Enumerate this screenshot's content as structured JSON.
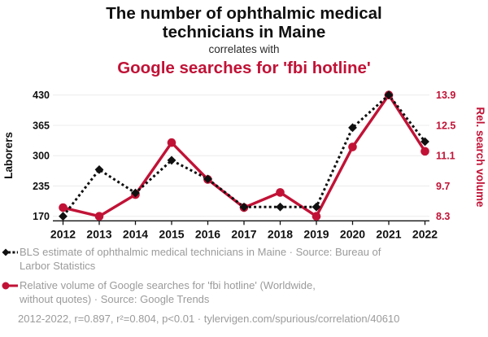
{
  "header": {
    "title_lines": [
      "The number of ophthalmic medical",
      "technicians in Maine"
    ],
    "connector": "correlates with",
    "subtitle": "Google searches for 'fbi hotline'"
  },
  "chart_data": {
    "type": "line",
    "x": [
      2012,
      2013,
      2014,
      2015,
      2016,
      2017,
      2018,
      2019,
      2020,
      2021,
      2022
    ],
    "series": [
      {
        "name": "BLS estimate of ophthalmic medical technicians in Maine",
        "axis": "left",
        "color": "#101010",
        "line_style": "dashed",
        "marker": "diamond",
        "values": [
          170,
          270,
          220,
          290,
          250,
          190,
          190,
          190,
          360,
          430,
          330
        ]
      },
      {
        "name": "Relative volume of Google searches for 'fbi hotline'",
        "axis": "right",
        "color": "#c11236",
        "line_style": "solid",
        "marker": "circle",
        "values": [
          8.7,
          8.3,
          9.3,
          11.7,
          10.0,
          8.7,
          9.4,
          8.3,
          11.5,
          13.9,
          11.3
        ]
      }
    ],
    "left_axis": {
      "label": "Laborers",
      "ticks": [
        170,
        235,
        300,
        365,
        430
      ],
      "ylim": [
        170,
        430
      ]
    },
    "right_axis": {
      "label": "Rel. search volume",
      "ticks": [
        8.3,
        9.7,
        11.1,
        12.5,
        13.9
      ],
      "ylim": [
        8.3,
        13.9
      ]
    },
    "grid": true,
    "legend_position": "bottom"
  },
  "legend": {
    "items": [
      {
        "marker": "black-diamond-dashed",
        "lines": [
          "BLS estimate of ophthalmic medical technicians in Maine · Source: Bureau of",
          "Larbor Statistics"
        ]
      },
      {
        "marker": "red-circle-solid",
        "lines": [
          "Relative volume of Google searches for 'fbi hotline' (Worldwide,",
          "without quotes) · Source: Google Trends"
        ]
      }
    ],
    "footer": "2012-2022, r=0.897, r²=0.804, p<0.01 · tylervigen.com/spurious/correlation/40610"
  },
  "colors": {
    "accent_red": "#c11236",
    "series_black": "#101010",
    "legend_text": "#9b9b9b",
    "gridline": "#ececec"
  }
}
